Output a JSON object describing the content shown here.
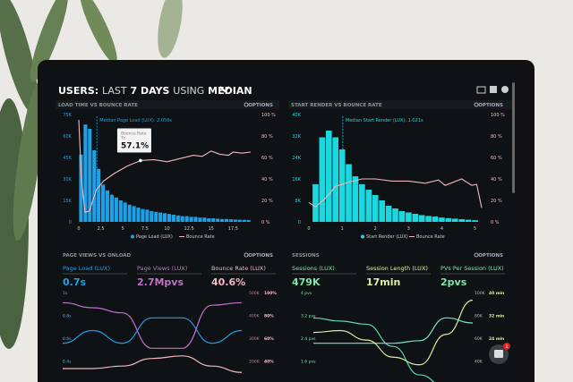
{
  "header": {
    "prefix": "USERS:",
    "range_light": "LAST",
    "range_bold": "7 DAYS",
    "using": "USING",
    "stat": "MEDIAN",
    "icons": [
      "monitor-icon",
      "chart-icon",
      "help-icon"
    ]
  },
  "options_label": "OPTIONS",
  "colors": {
    "blue": "#1ea0e6",
    "cyan": "#1ad8e0",
    "pink": "#f2b8c0",
    "purple": "#c070c8",
    "green": "#7de8a8",
    "yellow": "#e0f0a0",
    "screen": "#0e1215"
  },
  "chat_badge": "1",
  "chart_data": [
    {
      "type": "bar",
      "title": "LOAD TIME VS BOUNCE RATE",
      "annotation": "Median Page Load (LUX): 2.056s",
      "median": 2.056,
      "tooltip": {
        "label": "Bounce Rate",
        "sub": "7s",
        "value": "57.1%"
      },
      "x_ticks": [
        "0",
        "2.5",
        "5",
        "7.5",
        "10",
        "12.5",
        "15",
        "17.5"
      ],
      "xlim": [
        0,
        20
      ],
      "y_ticks": [
        "0",
        "15K",
        "30K",
        "45K",
        "60K",
        "75K"
      ],
      "ylim": [
        0,
        75
      ],
      "y2_ticks": [
        "0 %",
        "20 %",
        "40 %",
        "60 %",
        "80 %",
        "100 %"
      ],
      "legend": [
        "Page Load (LUX)",
        "Bounce Rate"
      ],
      "bar_width": 0.5,
      "bars": [
        47,
        68,
        65,
        50,
        37,
        26,
        22,
        19,
        17,
        15,
        13.5,
        12,
        11,
        10,
        9,
        8.5,
        7.5,
        7,
        6.5,
        6,
        5.5,
        5,
        4.5,
        4,
        4,
        3.5,
        3.5,
        3,
        3,
        2.5,
        2.5,
        2.2,
        2,
        2,
        1.8,
        1.6,
        1.5,
        1.4,
        1.3
      ],
      "bounce_line": [
        [
          0,
          95
        ],
        [
          0.3,
          40
        ],
        [
          0.7,
          9
        ],
        [
          1.2,
          10
        ],
        [
          2,
          30
        ],
        [
          2.8,
          38
        ],
        [
          4,
          45
        ],
        [
          5.5,
          52
        ],
        [
          7,
          57.1
        ],
        [
          8.5,
          58
        ],
        [
          10,
          56
        ],
        [
          11.5,
          59
        ],
        [
          13,
          62
        ],
        [
          14,
          61
        ],
        [
          15,
          66
        ],
        [
          16,
          63
        ],
        [
          17,
          62
        ],
        [
          17.5,
          65
        ],
        [
          18.5,
          64
        ],
        [
          19.5,
          65
        ]
      ]
    },
    {
      "type": "bar",
      "title": "START RENDER VS BOUNCE RATE",
      "annotation": "Median Start Render (LUX): 1.021s",
      "median": 1.021,
      "x_ticks": [
        "0",
        "1",
        "2",
        "3",
        "4",
        "5"
      ],
      "xlim": [
        0,
        5.2
      ],
      "y_ticks": [
        "0",
        "8K",
        "16K",
        "24K",
        "32K",
        "40K"
      ],
      "ylim": [
        0,
        40
      ],
      "y2_ticks": [
        "0 %",
        "20 %",
        "40 %",
        "60 %",
        "80 %",
        "100 %"
      ],
      "legend": [
        "Start Render (LUX)",
        "Bounce Rate"
      ],
      "bar_width": 0.2,
      "bars": [
        14,
        31.5,
        34,
        31.5,
        27,
        21.5,
        17,
        14,
        12,
        10,
        8,
        6,
        5,
        4,
        3.5,
        3,
        2.5,
        2.2,
        2,
        1.6,
        1.4,
        1.2,
        1,
        0.8,
        0.6
      ],
      "bounce_line": [
        [
          0,
          18
        ],
        [
          0.2,
          14
        ],
        [
          0.5,
          22
        ],
        [
          0.8,
          33
        ],
        [
          1.2,
          37
        ],
        [
          1.6,
          40
        ],
        [
          2,
          40
        ],
        [
          2.5,
          38
        ],
        [
          3,
          38
        ],
        [
          3.5,
          36
        ],
        [
          3.9,
          39
        ],
        [
          4.1,
          34
        ],
        [
          4.6,
          40
        ],
        [
          4.9,
          34
        ],
        [
          5.05,
          35
        ],
        [
          5.2,
          13
        ]
      ]
    },
    {
      "type": "line",
      "title": "PAGE VIEWS VS ONLOAD",
      "metrics": [
        {
          "label": "Page Load (LUX)",
          "value": "0.7s"
        },
        {
          "label": "Page Views (LUX)",
          "value": "2.7Mpvs"
        },
        {
          "label": "Bounce Rate (LUX)",
          "value": "40.6%"
        }
      ],
      "y_ticks": [
        "1s",
        "0.8s",
        "0.6s",
        "0.4s"
      ],
      "y2_ticks": [
        "500K",
        "400K",
        "300K",
        "200K"
      ],
      "y3_ticks": [
        "100%",
        "80%",
        "60%",
        "40%"
      ],
      "series": [
        {
          "name": "Page Load (LUX)",
          "values": [
            0.6,
            0.7,
            0.6,
            0.8,
            0.8,
            0.6,
            0.7
          ]
        },
        {
          "name": "Page Views (LUX)",
          "values": [
            460,
            440,
            420,
            280,
            280,
            450,
            460
          ]
        },
        {
          "name": "Bounce Rate (LUX)",
          "values": [
            40,
            40,
            42,
            48,
            50,
            42,
            37
          ]
        }
      ]
    },
    {
      "type": "line",
      "title": "SESSIONS",
      "metrics": [
        {
          "label": "Sessions (LUX)",
          "value": "479K"
        },
        {
          "label": "Session Length (LUX)",
          "value": "17min"
        },
        {
          "label": "PVs Per Session (LUX)",
          "value": "2pvs"
        }
      ],
      "y_ticks": [
        "4 pvs",
        "3.2 pvs",
        "2.4 pvs",
        "1.6 pvs"
      ],
      "y2_ticks": [
        "100K",
        "80K",
        "60K",
        "40K"
      ],
      "y3_ticks": [
        "40 min",
        "32 min",
        "24 min"
      ],
      "series": [
        {
          "name": "Sessions (LUX)",
          "values": [
            3.2,
            3.1,
            3.0,
            2.3,
            1.4,
            1.0,
            1.0
          ]
        },
        {
          "name": "Session Length (LUX)",
          "values": [
            2.0,
            2.0,
            2.0,
            2.0,
            2.1,
            3.0,
            2.8
          ]
        },
        {
          "name": "PVs Per Session (LUX)",
          "values": [
            1.9,
            2.0,
            1.5,
            0.6,
            0.2,
            1.8,
            3.6
          ]
        }
      ]
    }
  ]
}
